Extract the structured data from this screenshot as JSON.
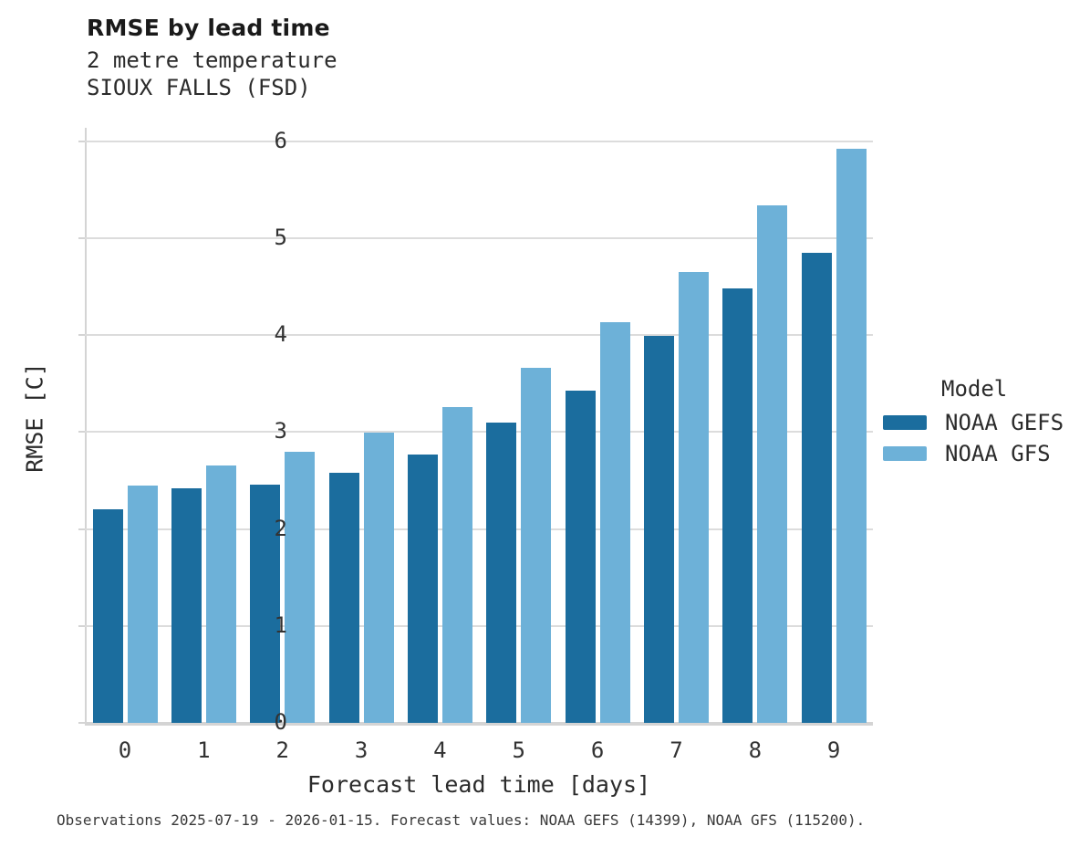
{
  "chart_data": {
    "type": "bar",
    "title": "RMSE by lead time",
    "subtitle": [
      "2 metre temperature",
      "SIOUX FALLS (FSD)"
    ],
    "categories": [
      "0",
      "1",
      "2",
      "3",
      "4",
      "5",
      "6",
      "7",
      "8",
      "9"
    ],
    "series": [
      {
        "name": "NOAA GEFS",
        "color": "#1b6d9e",
        "values": [
          2.2,
          2.42,
          2.46,
          2.58,
          2.77,
          3.1,
          3.43,
          3.99,
          4.48,
          4.85
        ]
      },
      {
        "name": "NOAA GFS",
        "color": "#6db1d8",
        "values": [
          2.45,
          2.65,
          2.8,
          2.99,
          3.26,
          3.66,
          4.13,
          4.65,
          5.34,
          5.92
        ]
      }
    ],
    "xlabel": "Forecast lead time [days]",
    "ylabel": "RMSE [C]",
    "ylim": [
      0,
      6
    ],
    "yticks": [
      0,
      1,
      2,
      3,
      4,
      5,
      6
    ],
    "grid": "horizontal",
    "legend": {
      "title": "Model",
      "position": "right"
    }
  },
  "caption": {
    "text": "Observations 2025-07-19 - 2026-01-15. Forecast values: NOAA GEFS (14399), NOAA GFS (115200)."
  },
  "colors": {
    "grid": "#dcdcdc",
    "axis": "#d4d4d4",
    "gefs": "#1b6d9e",
    "gfs": "#6db1d8"
  }
}
